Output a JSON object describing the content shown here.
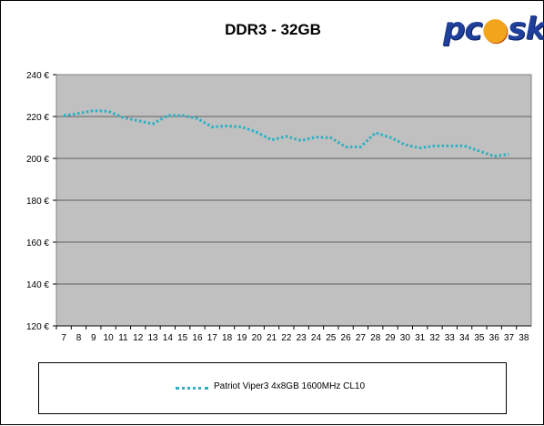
{
  "logo_text": "pcⓔsk",
  "chart_data": {
    "type": "line",
    "title": "DDR3 - 32GB",
    "xlabel": "",
    "ylabel": "",
    "categories": [
      "7",
      "8",
      "9",
      "10",
      "11",
      "12",
      "13",
      "14",
      "15",
      "16",
      "17",
      "18",
      "19",
      "20",
      "21",
      "22",
      "23",
      "24",
      "25",
      "26",
      "27",
      "28",
      "29",
      "30",
      "31",
      "32",
      "33",
      "34",
      "35",
      "36",
      "37",
      "38"
    ],
    "series": [
      {
        "name": "Patriot Viper3 4x8GB 1600MHz CL10",
        "color": "#2bb0c2",
        "values": [
          220.5,
          221.5,
          222.8,
          222.5,
          219.5,
          218,
          216.5,
          220.5,
          220.5,
          219,
          215,
          215.5,
          215,
          212.5,
          208.8,
          210.5,
          208.5,
          210.2,
          209.8,
          205.5,
          205.5,
          212.2,
          210,
          206.5,
          205,
          206,
          206,
          206,
          203.5,
          201,
          202,
          null
        ]
      }
    ],
    "y_tick_labels": [
      "240 €",
      "220 €",
      "200 €",
      "180 €",
      "160 €",
      "140 €",
      "120 €"
    ],
    "y_tick_values": [
      240,
      220,
      200,
      180,
      160,
      140,
      120
    ],
    "ylim": [
      120,
      240
    ],
    "grid": true,
    "plot_background": "#c0c0c0",
    "legend_position": "bottom"
  }
}
